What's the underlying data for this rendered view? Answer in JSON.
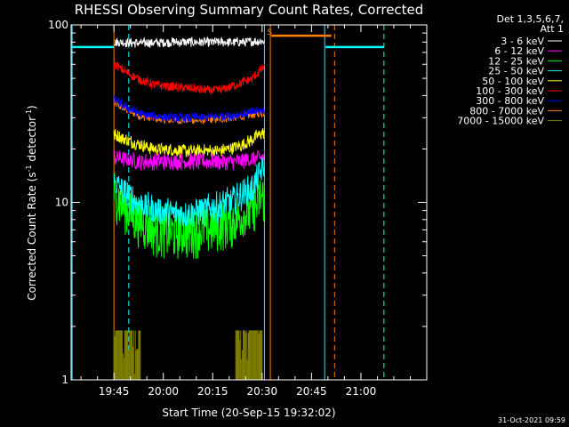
{
  "chart_data": {
    "type": "line",
    "title": "RHESSI Observing Summary Count Rates, Corrected",
    "xlabel": "Start Time (20-Sep-15 19:32:02)",
    "ylabel_prefix": "Corrected Count Rate (s",
    "ylabel_sup1": "-1",
    "ylabel_mid": " detector",
    "ylabel_sup2": "-1",
    "ylabel_suffix": ")",
    "y_scale": "log",
    "ylim": [
      1,
      100
    ],
    "xlim_minutes": [
      0,
      108
    ],
    "x_ticks": [
      {
        "label": "19:45",
        "minute": 13
      },
      {
        "label": "20:00",
        "minute": 28
      },
      {
        "label": "20:15",
        "minute": 43
      },
      {
        "label": "20:30",
        "minute": 58
      },
      {
        "label": "20:45",
        "minute": 73
      },
      {
        "label": "21:00",
        "minute": 88
      }
    ],
    "y_ticks": [
      {
        "label": "1",
        "value": 1
      },
      {
        "label": "10",
        "value": 10
      },
      {
        "label": "100",
        "value": 100
      }
    ],
    "legend_header": [
      "Det 1,3,5,6,7,",
      "Att 1"
    ],
    "series": [
      {
        "name": "3 - 6 keV",
        "color": "#ffffff",
        "x": [
          13,
          20,
          30,
          40,
          50,
          58.5
        ],
        "y": [
          80,
          79,
          80,
          80,
          80,
          81
        ]
      },
      {
        "name": "6 - 12 keV",
        "color": "#ff00ff",
        "x": [
          13,
          20,
          30,
          40,
          50,
          58.5
        ],
        "y": [
          18,
          17,
          17,
          17,
          17,
          18
        ]
      },
      {
        "name": "12 - 25 keV",
        "color": "#00ff00",
        "x": [
          13,
          16,
          20,
          25,
          30,
          35,
          40,
          45,
          50,
          55,
          58.5
        ],
        "y": [
          11,
          9.5,
          8,
          7,
          6.8,
          6.8,
          7,
          7.5,
          8,
          9,
          11
        ]
      },
      {
        "name": "25 - 50 keV",
        "color": "#00ffff",
        "x": [
          13,
          16,
          20,
          25,
          30,
          35,
          40,
          45,
          50,
          55,
          58.5
        ],
        "y": [
          13,
          11.5,
          10,
          9,
          8.7,
          8.7,
          9,
          9.5,
          10.5,
          12,
          16
        ]
      },
      {
        "name": "50 - 100 keV",
        "color": "#ffff00",
        "x": [
          13,
          18,
          25,
          35,
          45,
          52,
          58.5
        ],
        "y": [
          24,
          22,
          20,
          19.5,
          19.5,
          21,
          25
        ]
      },
      {
        "name": "100 - 300 keV",
        "color": "#ff0000",
        "x": [
          13,
          16,
          20,
          25,
          30,
          35,
          40,
          45,
          50,
          55,
          58.5
        ],
        "y": [
          60,
          55,
          50,
          46,
          45,
          44,
          43,
          43,
          46,
          50,
          58
        ]
      },
      {
        "name": "300 - 800 keV",
        "color": "#0000ff",
        "x": [
          13,
          17,
          22,
          30,
          40,
          50,
          58.5
        ],
        "y": [
          38,
          34,
          31,
          30,
          30,
          31,
          33
        ]
      },
      {
        "name": "800 - 7000 keV",
        "color": "#ff8000",
        "x": [
          13,
          17,
          22,
          30,
          40,
          50,
          58.5
        ],
        "y": [
          36,
          33,
          30,
          29,
          29,
          30,
          32
        ]
      },
      {
        "name": "7000 - 15000 keV",
        "color": "#808000",
        "x": [
          13,
          20,
          30,
          40,
          50,
          58.5
        ],
        "y": [
          1,
          1,
          1,
          1,
          1,
          1
        ]
      }
    ],
    "bursts": [
      {
        "series": "7000 - 15000 keV",
        "x_range": [
          13,
          21
        ],
        "y_max": 1.9
      },
      {
        "series": "7000 - 15000 keV",
        "x_range": [
          50,
          58
        ],
        "y_max": 1.9
      }
    ],
    "flag_bars": [
      {
        "color": "#00ffff",
        "x_range": [
          0,
          13
        ],
        "y": 75
      },
      {
        "color": "#00ffff",
        "x_range": [
          77,
          95
        ],
        "y": 75
      },
      {
        "color": "#ff8000",
        "x_range": [
          60.5,
          79
        ],
        "y": 87
      }
    ],
    "vlines_solid": [
      {
        "color": "#00ffff",
        "x": 0.3
      },
      {
        "color": "#ff8000",
        "x": 13
      },
      {
        "color": "#00ffff",
        "x": 58.7
      },
      {
        "color": "#ff8000",
        "x": 60.5
      },
      {
        "color": "#00ffff",
        "x": 77
      }
    ],
    "vlines_dashed": [
      {
        "color": "#00ffff",
        "x": 17.5
      },
      {
        "color": "#ff8000",
        "x": 80
      },
      {
        "color": "#00ffff",
        "x": 95
      }
    ],
    "annotation": {
      "text": "S",
      "x": 59.5,
      "y": 88,
      "color": "#ff8000"
    },
    "footer": "31-Oct-2021 09:59"
  }
}
